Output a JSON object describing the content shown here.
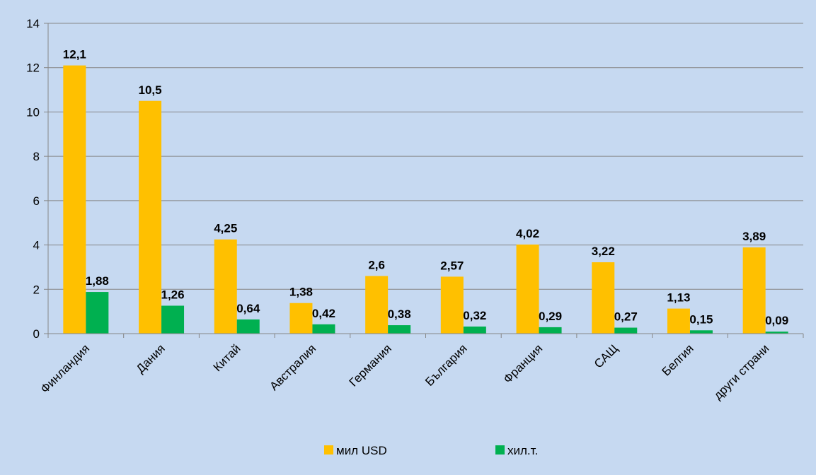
{
  "chart_data": {
    "type": "bar",
    "categories": [
      "Финландия",
      "Дания",
      "Китай",
      "Австралия",
      "Германия",
      "България",
      "Франция",
      "САЩ",
      "Белгия",
      "други страни"
    ],
    "series": [
      {
        "name": "мил USD",
        "color": "#ffc000",
        "values": [
          12.1,
          10.5,
          4.25,
          1.38,
          2.6,
          2.57,
          4.02,
          3.22,
          1.13,
          3.89
        ],
        "value_labels": [
          "12,1",
          "10,5",
          "4,25",
          "1,38",
          "2,6",
          "2,57",
          "4,02",
          "3,22",
          "1,13",
          "3,89"
        ]
      },
      {
        "name": "хил.т.",
        "color": "#00b050",
        "values": [
          1.88,
          1.26,
          0.64,
          0.42,
          0.38,
          0.32,
          0.29,
          0.27,
          0.15,
          0.09
        ],
        "value_labels": [
          "1,88",
          "1,26",
          "0,64",
          "0,42",
          "0,38",
          "0,32",
          "0,29",
          "0,27",
          "0,15",
          "0,09"
        ]
      }
    ],
    "ylim": [
      0,
      14
    ],
    "yticks": [
      0,
      2,
      4,
      6,
      8,
      10,
      12,
      14
    ],
    "grid": true,
    "legend": "bottom"
  }
}
